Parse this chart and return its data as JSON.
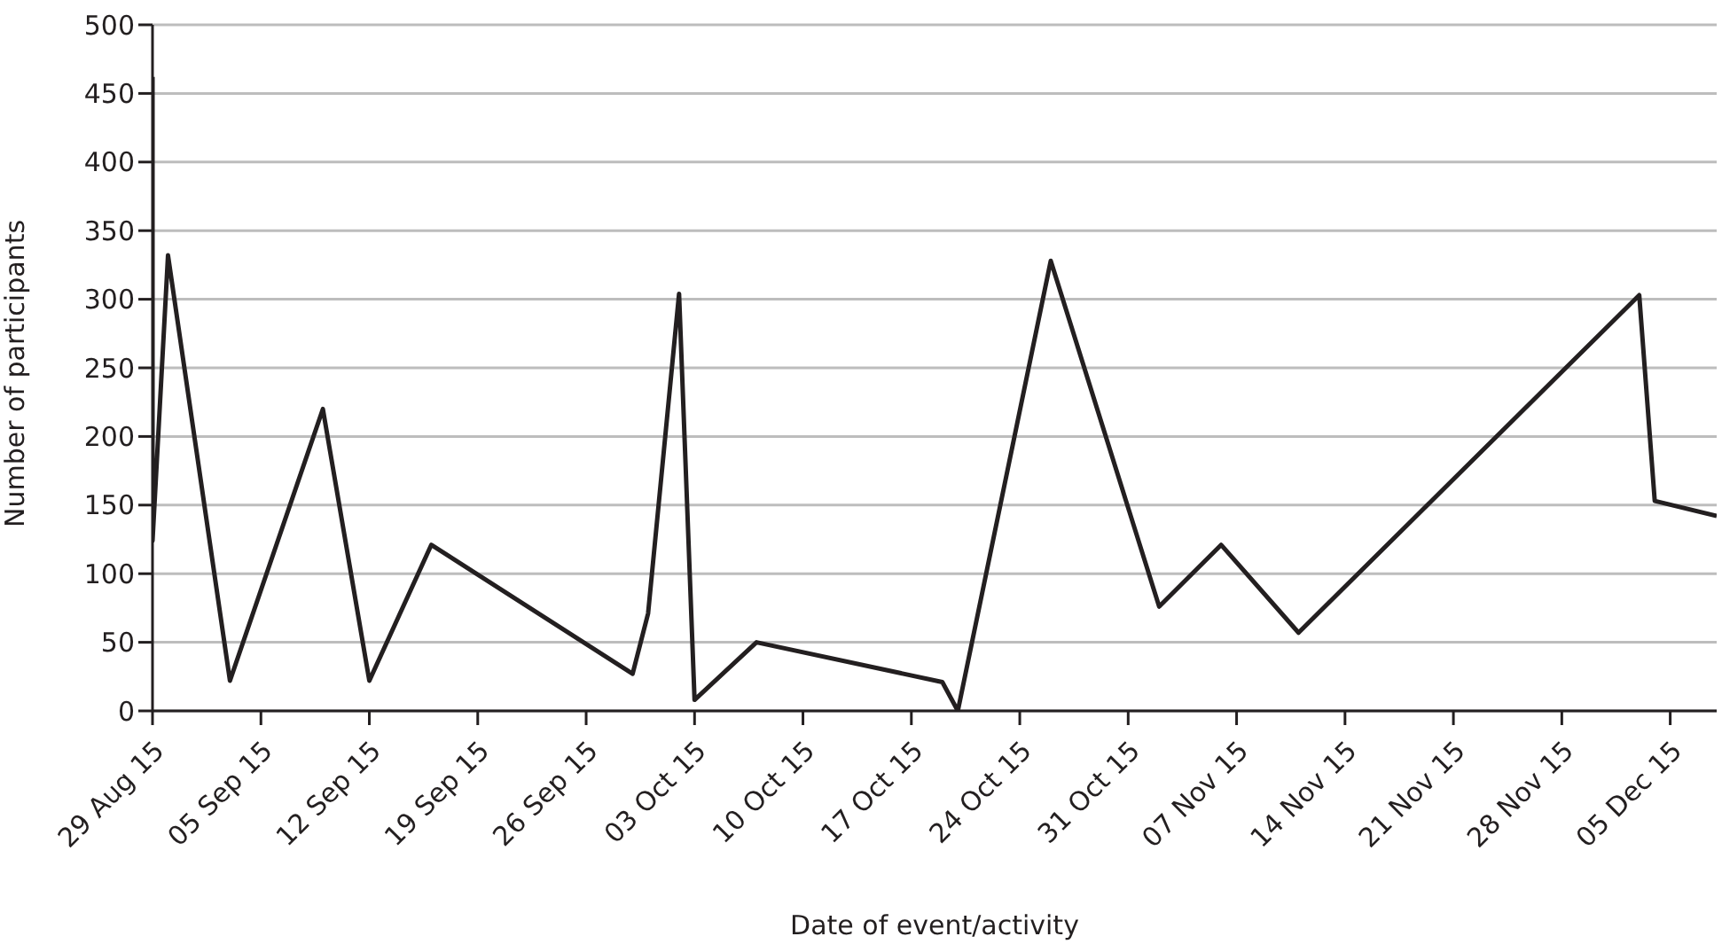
{
  "chart_data": {
    "type": "line",
    "xlabel": "Date of event/activity",
    "ylabel": "Number of participants",
    "x": [
      "--08-29",
      "--08-29",
      "--08-30",
      "--09-03",
      "--09-09",
      "--09-12",
      "--09-16",
      "--09-29",
      "--09-30",
      "--10-02",
      "--10-03",
      "--10-07",
      "--10-19",
      "--10-20",
      "--10-26",
      "--11-02",
      "--11-06",
      "--11-11",
      "--12-03",
      "--12-04",
      "--12-08"
    ],
    "series": [
      {
        "color": "#231f20",
        "values": [
          462,
          124,
          332,
          22,
          220,
          22,
          121,
          27,
          71,
          304,
          8,
          50,
          21,
          0,
          328,
          76,
          121,
          57,
          303,
          153,
          142
        ]
      }
    ],
    "xlim": [
      "--08-29",
      "--12-08"
    ],
    "xticks": [
      {
        "value": "--08-29",
        "label": "29 Aug 15"
      },
      {
        "value": "--09-05",
        "label": "05 Sep 15"
      },
      {
        "value": "--09-12",
        "label": "12 Sep 15"
      },
      {
        "value": "--09-19",
        "label": "19 Sep 15"
      },
      {
        "value": "--09-26",
        "label": "26 Sep 15"
      },
      {
        "value": "--10-03",
        "label": "03 Oct 15"
      },
      {
        "value": "--10-10",
        "label": "10 Oct 15"
      },
      {
        "value": "--10-17",
        "label": "17 Oct 15"
      },
      {
        "value": "--10-24",
        "label": "24 Oct 15"
      },
      {
        "value": "--10-31",
        "label": "31 Oct 15"
      },
      {
        "value": "--11-07",
        "label": "07 Nov 15"
      },
      {
        "value": "--11-14",
        "label": "14 Nov 15"
      },
      {
        "value": "--11-21",
        "label": "21 Nov 15"
      },
      {
        "value": "--11-28",
        "label": "28 Nov 15"
      },
      {
        "value": "--12-05",
        "label": "05 Dec 15"
      }
    ],
    "ylim": [
      0,
      500
    ],
    "yticks": [
      0,
      50,
      100,
      150,
      200,
      250,
      300,
      350,
      400,
      450,
      500
    ],
    "grid": "y",
    "marker": "none",
    "line_style": "solid"
  }
}
